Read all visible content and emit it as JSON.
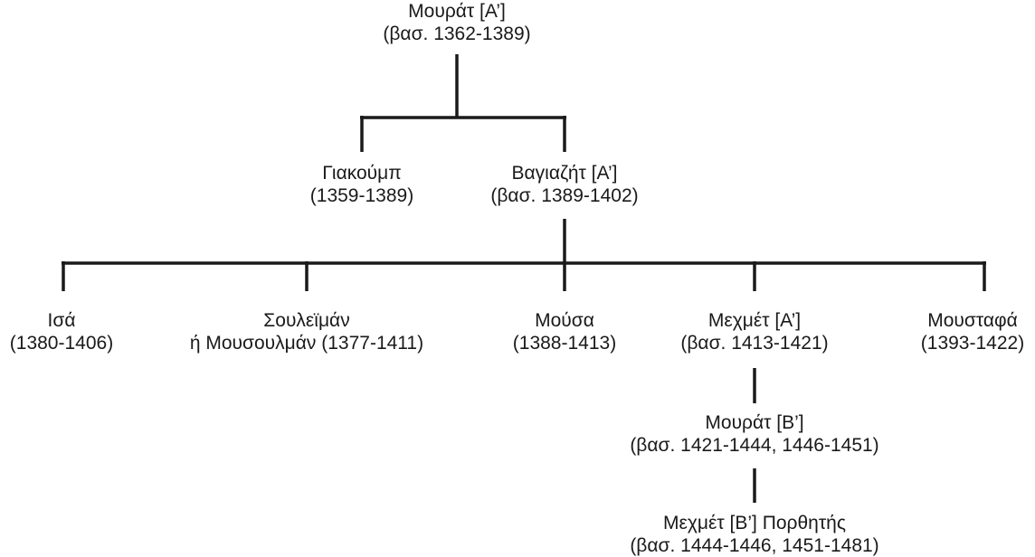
{
  "tree": {
    "murad_i": {
      "name": "Μουράτ [Α’]",
      "dates": "(βασ. 1362-1389)"
    },
    "yakub": {
      "name": "Γιακούμπ",
      "dates": "(1359-1389)"
    },
    "bayezid_i": {
      "name": "Βαγιαζήτ [Α’]",
      "dates": "(βασ. 1389-1402)"
    },
    "isa": {
      "name": "Ισά",
      "dates": "(1380-1406)"
    },
    "suleyman": {
      "name": "Σουλεϊμάν",
      "dates": "ή Μουσουλμάν (1377-1411)"
    },
    "musa": {
      "name": "Μούσα",
      "dates": "(1388-1413)"
    },
    "mehmed_i": {
      "name": "Μεχμέτ [Α’]",
      "dates": "(βασ. 1413-1421)"
    },
    "mustafa": {
      "name": "Μουσταφά",
      "dates": "(1393-1422)"
    },
    "murad_ii": {
      "name": "Μουράτ [Β’]",
      "dates": "(βασ. 1421-1444, 1446-1451)"
    },
    "mehmed_ii": {
      "name": "Μεχμέτ [Β’] Πορθητής",
      "dates": "(βασ. 1444-1446, 1451-1481)"
    }
  }
}
